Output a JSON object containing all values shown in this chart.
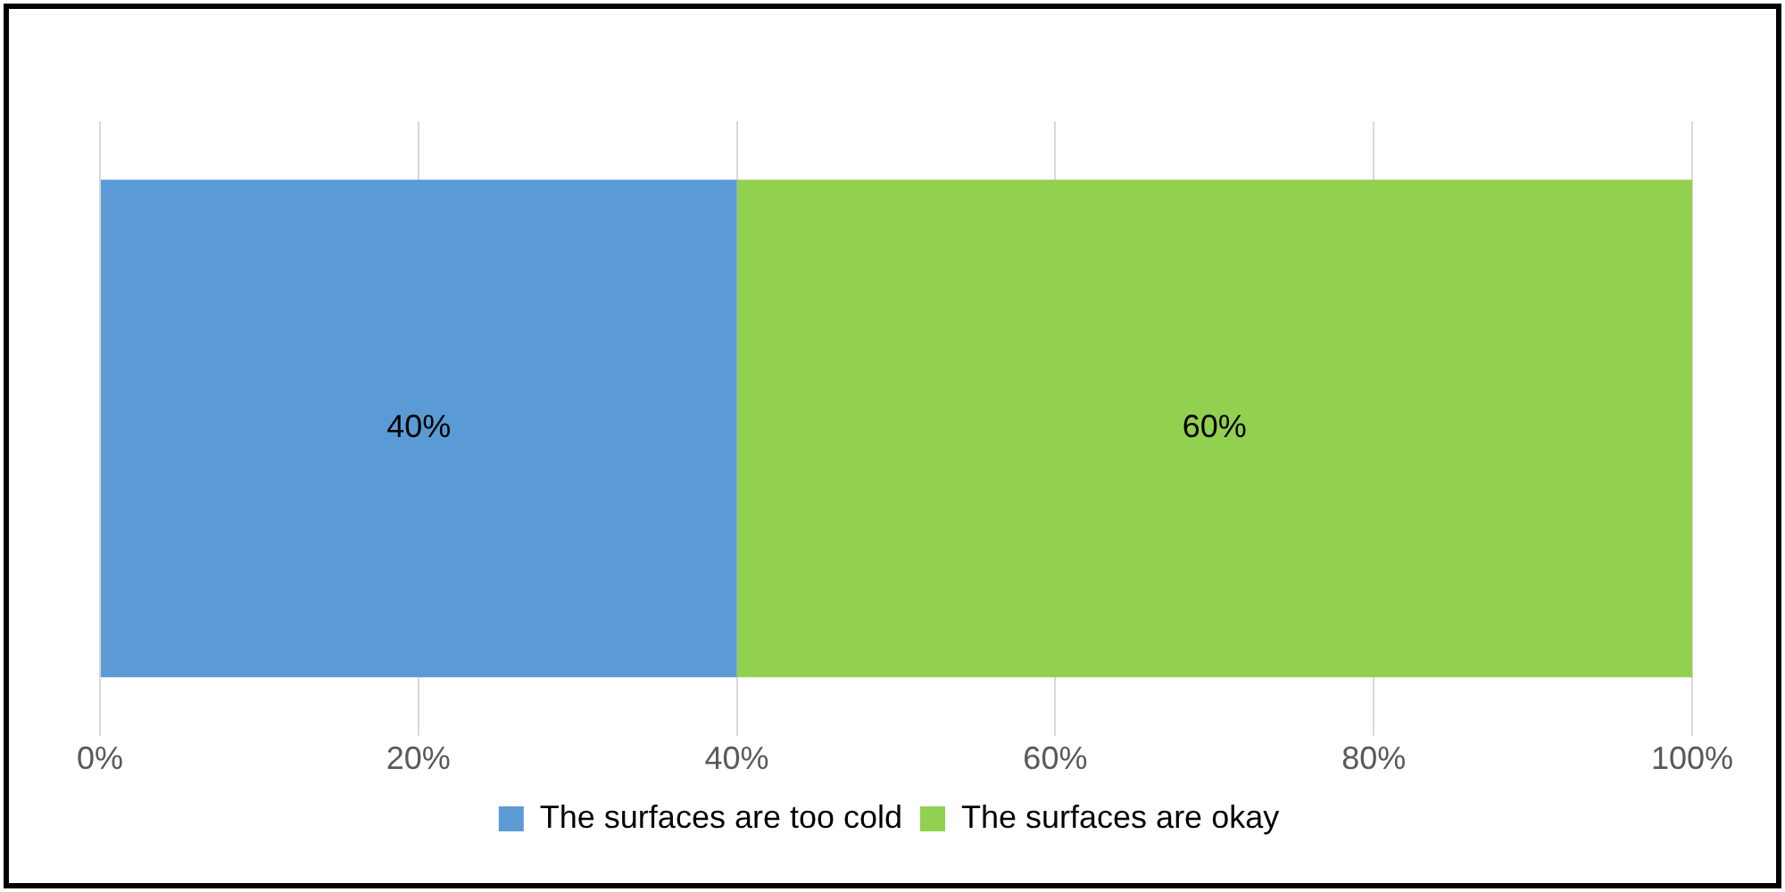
{
  "chart_data": {
    "type": "bar",
    "orientation": "horizontal",
    "stacked": true,
    "categories": [
      null
    ],
    "series": [
      {
        "name": "The surfaces are too cold",
        "color": "#5b9bd5",
        "values": [
          40
        ],
        "value_labels": [
          "40%"
        ]
      },
      {
        "name": "The surfaces are okay",
        "color": "#92d050",
        "values": [
          60
        ],
        "value_labels": [
          "60%"
        ]
      }
    ],
    "xlim": [
      0,
      100
    ],
    "xticks": [
      {
        "value": 0,
        "label": "0%"
      },
      {
        "value": 20,
        "label": "20%"
      },
      {
        "value": 40,
        "label": "40%"
      },
      {
        "value": 60,
        "label": "60%"
      },
      {
        "value": 80,
        "label": "80%"
      },
      {
        "value": 100,
        "label": "100%"
      }
    ],
    "grid": "x",
    "legend": "bottom"
  }
}
